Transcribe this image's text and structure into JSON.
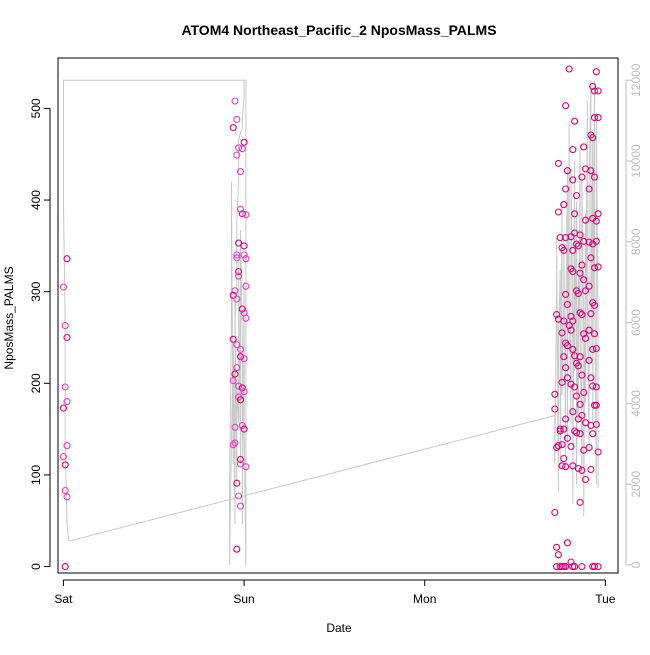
{
  "chart_data": {
    "type": "scatter",
    "title": "ATOM4 Northeast_Pacific_2 NposMass_PALMS",
    "xlabel": "Date",
    "ylabel": "NposMass_PALMS",
    "x_ticks": [
      "Sat",
      "Sun",
      "Mon",
      "Tue"
    ],
    "xlim": [
      -0.03,
      3.07
    ],
    "ylim": [
      -7,
      555
    ],
    "y_ticks": [
      0,
      100,
      200,
      300,
      400,
      500
    ],
    "y2lim": [
      -200,
      12550
    ],
    "y2_ticks": [
      0,
      2000,
      4000,
      6000,
      8000,
      10000,
      12000
    ],
    "grid": false,
    "colors": {
      "points_dark": "#e0007a",
      "points_light": "#ee3bcc",
      "line": "#c8c8c8",
      "right_axis": "#bdbdbd",
      "axis": "#000000"
    },
    "series": [
      {
        "points": [
          [
            0.02,
            336
          ],
          [
            0.0,
            305
          ],
          [
            0.01,
            263
          ],
          [
            0.02,
            250
          ],
          [
            0.01,
            196
          ],
          [
            0.02,
            180
          ],
          [
            0.0,
            173
          ],
          [
            0.02,
            132
          ],
          [
            0.0,
            120
          ],
          [
            0.01,
            111
          ],
          [
            0.01,
            83
          ],
          [
            0.02,
            76
          ],
          [
            0.01,
            0
          ],
          [
            0.95,
            508
          ],
          [
            0.96,
            488
          ],
          [
            0.94,
            479
          ],
          [
            0.97,
            457
          ],
          [
            0.96,
            449
          ],
          [
            1.0,
            463
          ],
          [
            0.99,
            456
          ],
          [
            0.98,
            431
          ],
          [
            0.99,
            385
          ],
          [
            0.98,
            390
          ],
          [
            1.01,
            384
          ],
          [
            0.97,
            353
          ],
          [
            0.96,
            340
          ],
          [
            0.96,
            337
          ],
          [
            1.0,
            350
          ],
          [
            1.01,
            336
          ],
          [
            1.0,
            340
          ],
          [
            0.97,
            322
          ],
          [
            0.97,
            317
          ],
          [
            0.95,
            301
          ],
          [
            0.94,
            296
          ],
          [
            0.96,
            292
          ],
          [
            1.01,
            306
          ],
          [
            0.99,
            281
          ],
          [
            1.0,
            277
          ],
          [
            1.01,
            271
          ],
          [
            0.94,
            248
          ],
          [
            0.96,
            242
          ],
          [
            0.98,
            237
          ],
          [
            0.98,
            229
          ],
          [
            1.0,
            227
          ],
          [
            0.96,
            217
          ],
          [
            0.95,
            210
          ],
          [
            0.94,
            203
          ],
          [
            0.97,
            197
          ],
          [
            0.99,
            195
          ],
          [
            1.0,
            191
          ],
          [
            0.97,
            185
          ],
          [
            0.98,
            182
          ],
          [
            0.95,
            152
          ],
          [
            0.99,
            154
          ],
          [
            1.0,
            150
          ],
          [
            0.95,
            135
          ],
          [
            0.94,
            133
          ],
          [
            0.98,
            117
          ],
          [
            0.98,
            112
          ],
          [
            1.01,
            109
          ],
          [
            0.96,
            91
          ],
          [
            0.97,
            77
          ],
          [
            0.98,
            66
          ],
          [
            0.96,
            19
          ],
          [
            2.74,
            440
          ],
          [
            2.74,
            387
          ],
          [
            2.75,
            359
          ],
          [
            2.73,
            275
          ],
          [
            2.74,
            270
          ],
          [
            2.72,
            188
          ],
          [
            2.72,
            172
          ],
          [
            2.73,
            130
          ],
          [
            2.74,
            132
          ],
          [
            2.75,
            150
          ],
          [
            2.75,
            148
          ],
          [
            2.72,
            59
          ],
          [
            2.73,
            21
          ],
          [
            2.74,
            13
          ],
          [
            2.73,
            0
          ],
          [
            2.75,
            0
          ],
          [
            2.76,
            0
          ],
          [
            2.78,
            503
          ],
          [
            2.8,
            543
          ],
          [
            2.79,
            432
          ],
          [
            2.78,
            412
          ],
          [
            2.77,
            395
          ],
          [
            2.78,
            359
          ],
          [
            2.76,
            348
          ],
          [
            2.77,
            345
          ],
          [
            2.78,
            297
          ],
          [
            2.79,
            286
          ],
          [
            2.77,
            268
          ],
          [
            2.76,
            255
          ],
          [
            2.78,
            244
          ],
          [
            2.79,
            241
          ],
          [
            2.77,
            229
          ],
          [
            2.78,
            217
          ],
          [
            2.79,
            206
          ],
          [
            2.76,
            201
          ],
          [
            2.78,
            161
          ],
          [
            2.77,
            150
          ],
          [
            2.76,
            133
          ],
          [
            2.79,
            140
          ],
          [
            2.77,
            118
          ],
          [
            2.76,
            110
          ],
          [
            2.78,
            109
          ],
          [
            2.79,
            26
          ],
          [
            2.77,
            0
          ],
          [
            2.78,
            0
          ],
          [
            2.83,
            486
          ],
          [
            2.82,
            455
          ],
          [
            2.82,
            422
          ],
          [
            2.84,
            405
          ],
          [
            2.83,
            385
          ],
          [
            2.83,
            364
          ],
          [
            2.81,
            360
          ],
          [
            2.82,
            345
          ],
          [
            2.84,
            352
          ],
          [
            2.85,
            350
          ],
          [
            2.81,
            325
          ],
          [
            2.82,
            322
          ],
          [
            2.84,
            301
          ],
          [
            2.85,
            298
          ],
          [
            2.81,
            273
          ],
          [
            2.82,
            268
          ],
          [
            2.8,
            263
          ],
          [
            2.81,
            258
          ],
          [
            2.82,
            237
          ],
          [
            2.83,
            230
          ],
          [
            2.84,
            222
          ],
          [
            2.85,
            219
          ],
          [
            2.81,
            199
          ],
          [
            2.83,
            196
          ],
          [
            2.84,
            186
          ],
          [
            2.82,
            169
          ],
          [
            2.85,
            161
          ],
          [
            2.83,
            148
          ],
          [
            2.84,
            146
          ],
          [
            2.81,
            131
          ],
          [
            2.82,
            110
          ],
          [
            2.85,
            107
          ],
          [
            2.81,
            5
          ],
          [
            2.82,
            0
          ],
          [
            2.83,
            0
          ],
          [
            2.88,
            458
          ],
          [
            2.87,
            425
          ],
          [
            2.89,
            434
          ],
          [
            2.86,
            362
          ],
          [
            2.88,
            355
          ],
          [
            2.89,
            378
          ],
          [
            2.87,
            329
          ],
          [
            2.86,
            320
          ],
          [
            2.88,
            313
          ],
          [
            2.89,
            301
          ],
          [
            2.86,
            277
          ],
          [
            2.87,
            275
          ],
          [
            2.88,
            254
          ],
          [
            2.89,
            249
          ],
          [
            2.86,
            229
          ],
          [
            2.87,
            209
          ],
          [
            2.88,
            190
          ],
          [
            2.86,
            177
          ],
          [
            2.87,
            165
          ],
          [
            2.89,
            157
          ],
          [
            2.86,
            145
          ],
          [
            2.88,
            127
          ],
          [
            2.87,
            105
          ],
          [
            2.89,
            95
          ],
          [
            2.86,
            70
          ],
          [
            2.87,
            0
          ],
          [
            2.94,
            519
          ],
          [
            2.95,
            540
          ],
          [
            2.96,
            519
          ],
          [
            2.93,
            524
          ],
          [
            2.94,
            490
          ],
          [
            2.92,
            471
          ],
          [
            2.93,
            468
          ],
          [
            2.96,
            490
          ],
          [
            2.92,
            432
          ],
          [
            2.94,
            425
          ],
          [
            2.91,
            412
          ],
          [
            2.93,
            380
          ],
          [
            2.95,
            377
          ],
          [
            2.96,
            385
          ],
          [
            2.91,
            354
          ],
          [
            2.93,
            352
          ],
          [
            2.95,
            355
          ],
          [
            2.92,
            337
          ],
          [
            2.94,
            326
          ],
          [
            2.96,
            327
          ],
          [
            2.91,
            306
          ],
          [
            2.93,
            288
          ],
          [
            2.94,
            285
          ],
          [
            2.92,
            276
          ],
          [
            2.91,
            258
          ],
          [
            2.94,
            254
          ],
          [
            2.93,
            237
          ],
          [
            2.95,
            238
          ],
          [
            2.91,
            225
          ],
          [
            2.92,
            206
          ],
          [
            2.93,
            197
          ],
          [
            2.95,
            196
          ],
          [
            2.94,
            176
          ],
          [
            2.95,
            176
          ],
          [
            2.92,
            154
          ],
          [
            2.93,
            145
          ],
          [
            2.91,
            130
          ],
          [
            2.95,
            155
          ],
          [
            2.96,
            125
          ],
          [
            2.92,
            106
          ],
          [
            2.93,
            0
          ],
          [
            2.94,
            0
          ],
          [
            2.96,
            0
          ]
        ],
        "line": [
          [
            0.0,
            12000
          ],
          [
            0.02,
            12000
          ],
          [
            0.15,
            12000
          ],
          [
            0.4,
            12000
          ],
          [
            0.7,
            12000
          ],
          [
            0.93,
            12000
          ],
          [
            0.95,
            12000
          ],
          [
            0.97,
            12000
          ],
          [
            1.0,
            12000
          ],
          [
            1.0,
            11600
          ],
          [
            0.99,
            11000
          ],
          [
            0.99,
            10800
          ],
          [
            0.98,
            10700
          ],
          [
            0.97,
            10500
          ],
          [
            0.97,
            9500
          ],
          [
            0.96,
            8500
          ],
          [
            0.96,
            7000
          ],
          [
            0.95,
            6000
          ],
          [
            0.95,
            5000
          ],
          [
            0.94,
            4000
          ],
          [
            0.94,
            3000
          ],
          [
            0.94,
            2500
          ],
          [
            0.93,
            9500
          ],
          [
            0.93,
            6000
          ],
          [
            0.92,
            2000
          ],
          [
            0.92,
            0
          ],
          [
            0.93,
            3000
          ],
          [
            0.94,
            5500
          ],
          [
            0.95,
            1000
          ],
          [
            0.95,
            6500
          ],
          [
            0.96,
            2000
          ],
          [
            0.96,
            4500
          ],
          [
            0.97,
            3500
          ],
          [
            0.97,
            7500
          ],
          [
            0.98,
            2500
          ],
          [
            0.98,
            8300
          ],
          [
            0.99,
            5500
          ],
          [
            0.99,
            1000
          ],
          [
            1.0,
            7000
          ],
          [
            1.0,
            3500
          ],
          [
            1.01,
            0
          ],
          [
            1.01,
            12000
          ],
          [
            0.02,
            12000
          ],
          [
            0.0,
            12000
          ],
          [
            0.0,
            9000
          ],
          [
            0.01,
            6000
          ],
          [
            0.01,
            3000
          ],
          [
            0.02,
            1000
          ],
          [
            0.03,
            600
          ],
          [
            0.04,
            600
          ]
        ],
        "line_connector": [
          [
            0.04,
            600
          ],
          [
            2.72,
            3700
          ]
        ],
        "line_right": [
          [
            2.72,
            3700
          ],
          [
            2.72,
            2500
          ],
          [
            2.73,
            6700
          ],
          [
            2.73,
            8100
          ],
          [
            2.74,
            1800
          ],
          [
            2.74,
            5500
          ],
          [
            2.75,
            7300
          ],
          [
            2.75,
            2400
          ],
          [
            2.76,
            9000
          ],
          [
            2.76,
            4200
          ],
          [
            2.77,
            6600
          ],
          [
            2.77,
            8200
          ],
          [
            2.78,
            2700
          ],
          [
            2.78,
            5500
          ],
          [
            2.79,
            9800
          ],
          [
            2.79,
            3000
          ],
          [
            2.8,
            11000
          ],
          [
            2.8,
            7000
          ],
          [
            2.81,
            3500
          ],
          [
            2.81,
            9800
          ],
          [
            2.82,
            6000
          ],
          [
            2.82,
            1500
          ],
          [
            2.83,
            10000
          ],
          [
            2.83,
            4800
          ],
          [
            2.84,
            9000
          ],
          [
            2.84,
            2000
          ],
          [
            2.85,
            7200
          ],
          [
            2.85,
            3500
          ],
          [
            2.86,
            10400
          ],
          [
            2.86,
            6200
          ],
          [
            2.87,
            2300
          ],
          [
            2.87,
            9600
          ],
          [
            2.88,
            5700
          ],
          [
            2.88,
            1200
          ],
          [
            2.89,
            8700
          ],
          [
            2.89,
            4000
          ],
          [
            2.9,
            11500
          ],
          [
            2.9,
            6800
          ],
          [
            2.91,
            2800
          ],
          [
            2.91,
            9300
          ],
          [
            2.92,
            12000
          ],
          [
            2.92,
            5000
          ],
          [
            2.93,
            10500
          ],
          [
            2.93,
            3500
          ],
          [
            2.94,
            12000
          ],
          [
            2.94,
            7500
          ],
          [
            2.95,
            2000
          ],
          [
            2.95,
            11200
          ],
          [
            2.96,
            5500
          ],
          [
            2.96,
            1900
          ]
        ]
      }
    ]
  }
}
